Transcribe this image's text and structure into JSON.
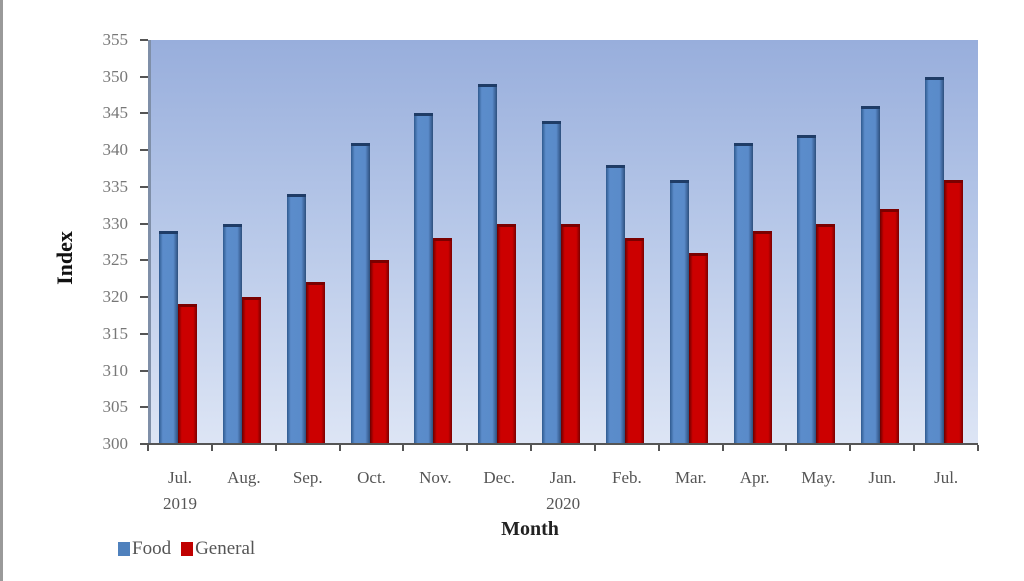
{
  "chart_data": {
    "type": "bar",
    "title": "",
    "xlabel": "Month",
    "ylabel": "Index",
    "ylim": [
      300,
      355
    ],
    "yticks": [
      300,
      305,
      310,
      315,
      320,
      325,
      330,
      335,
      340,
      345,
      350,
      355
    ],
    "categories": [
      "Jul. 2019",
      "Aug.",
      "Sep.",
      "Oct.",
      "Nov.",
      "Dec.",
      "Jan. 2020",
      "Feb.",
      "Mar.",
      "Apr.",
      "May.",
      "Jun.",
      "Jul."
    ],
    "category_lines": [
      [
        "Jul.",
        "2019"
      ],
      [
        "Aug."
      ],
      [
        "Sep."
      ],
      [
        "Oct."
      ],
      [
        "Nov."
      ],
      [
        "Dec."
      ],
      [
        "Jan.",
        "2020"
      ],
      [
        "Feb."
      ],
      [
        "Mar."
      ],
      [
        "Apr."
      ],
      [
        "May."
      ],
      [
        "Jun."
      ],
      [
        "Jul."
      ]
    ],
    "series": [
      {
        "name": "Food",
        "color": "#4f81bd",
        "values": [
          329,
          330,
          334,
          341,
          345,
          349,
          344,
          338,
          336,
          341,
          342,
          346,
          350
        ]
      },
      {
        "name": "General",
        "color": "#c00000",
        "values": [
          319,
          320,
          322,
          325,
          328,
          330,
          330,
          328,
          326,
          329,
          330,
          332,
          336
        ]
      }
    ],
    "legend_position": "bottom-left",
    "grid": false,
    "background": "gradient blue (top) to pale blue (bottom)"
  },
  "legend": {
    "items": [
      {
        "label": "Food",
        "color": "#4f81bd"
      },
      {
        "label": "General",
        "color": "#c00000"
      }
    ]
  }
}
